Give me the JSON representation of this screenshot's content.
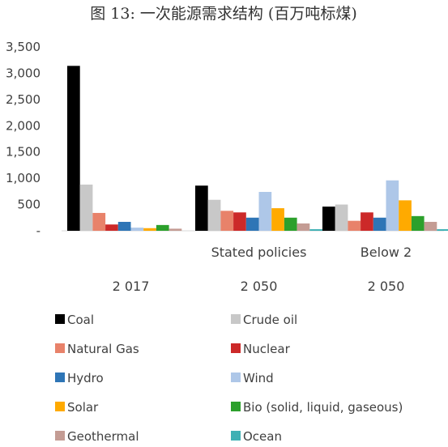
{
  "chart_data": {
    "type": "bar",
    "title": "图 13: 一次能源需求结构 (百万吨标煤)",
    "categories": [
      {
        "label": "",
        "sublabel": "2 017"
      },
      {
        "label": "Stated policies",
        "sublabel": "2 050"
      },
      {
        "label": "Below 2",
        "sublabel": "2 050"
      }
    ],
    "ylim": [
      0,
      3500
    ],
    "yticks": [
      {
        "value": 0,
        "label": "-"
      },
      {
        "value": 500,
        "label": "500"
      },
      {
        "value": 1000,
        "label": "1,000"
      },
      {
        "value": 1500,
        "label": "1,500"
      },
      {
        "value": 2000,
        "label": "2,000"
      },
      {
        "value": 2500,
        "label": "2,500"
      },
      {
        "value": 3000,
        "label": "3,000"
      },
      {
        "value": 3500,
        "label": "3,500"
      }
    ],
    "grid": false,
    "legend_position": "bottom",
    "series": [
      {
        "name": "Coal",
        "color": "#000000",
        "values": [
          3140,
          860,
          460
        ]
      },
      {
        "name": "Crude oil",
        "color": "#c8c8c8",
        "values": [
          880,
          590,
          500
        ]
      },
      {
        "name": "Natural Gas",
        "color": "#e8826a",
        "values": [
          340,
          380,
          190
        ]
      },
      {
        "name": "Nuclear",
        "color": "#cc2929",
        "values": [
          120,
          350,
          350
        ]
      },
      {
        "name": "Hydro",
        "color": "#2e75b6",
        "values": [
          170,
          250,
          250
        ]
      },
      {
        "name": "Wind",
        "color": "#aec7e8",
        "values": [
          60,
          740,
          960
        ]
      },
      {
        "name": "Solar",
        "color": "#ffaa00",
        "values": [
          50,
          430,
          580
        ]
      },
      {
        "name": "Bio (solid, liquid, gaseous)",
        "color": "#2ca02c",
        "values": [
          110,
          250,
          280
        ]
      },
      {
        "name": "Geothermal",
        "color": "#c49c94",
        "values": [
          40,
          140,
          170
        ]
      },
      {
        "name": "Ocean",
        "color": "#3fb0b4",
        "values": [
          0,
          30,
          30
        ]
      }
    ]
  }
}
